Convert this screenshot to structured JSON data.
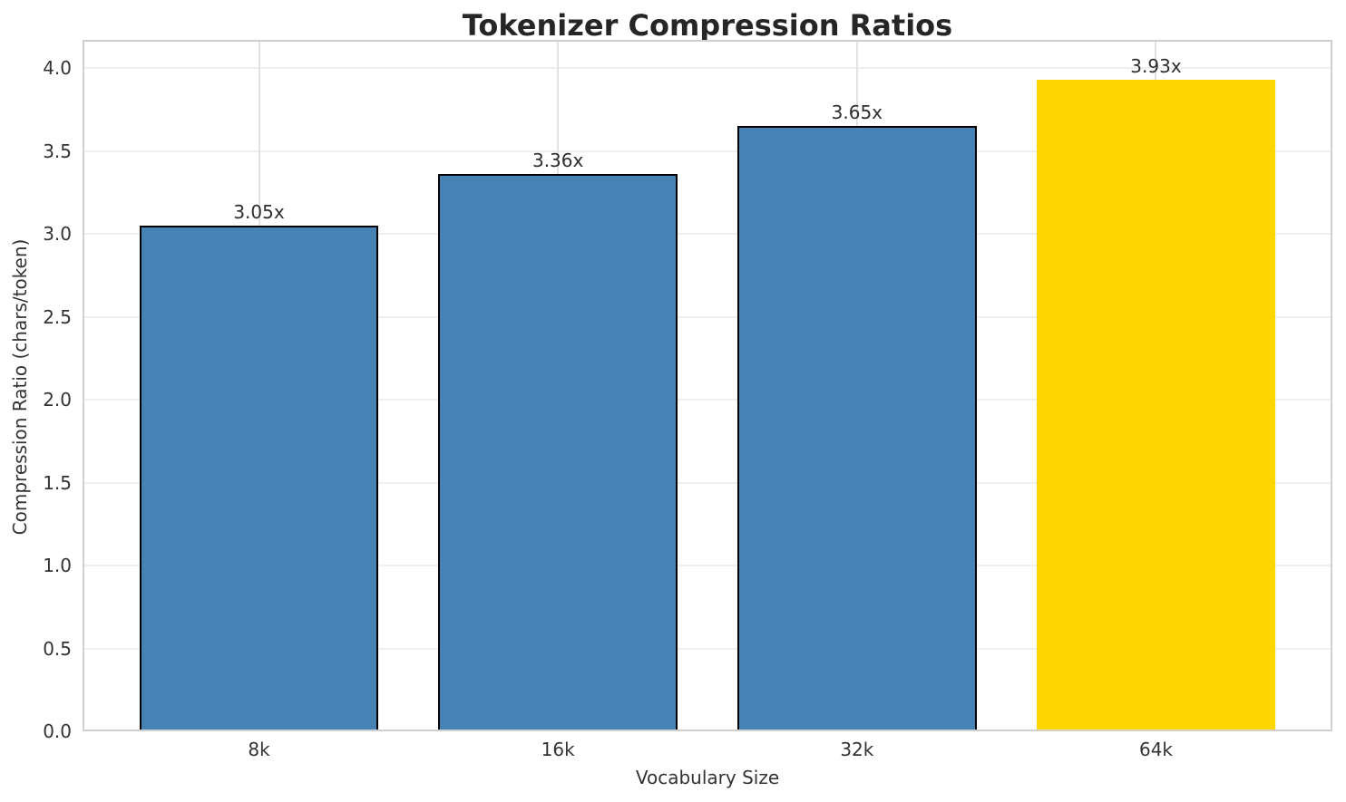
{
  "chart_data": {
    "type": "bar",
    "title": "Tokenizer Compression Ratios",
    "xlabel": "Vocabulary Size",
    "ylabel": "Compression Ratio (chars/token)",
    "categories": [
      "8k",
      "16k",
      "32k",
      "64k"
    ],
    "values": [
      3.05,
      3.36,
      3.65,
      3.93
    ],
    "bar_labels": [
      "3.05x",
      "3.36x",
      "3.65x",
      "3.93x"
    ],
    "bar_colors": [
      "#4682B4",
      "#4682B4",
      "#4682B4",
      "#FFD700"
    ],
    "bar_edge_colors": [
      "#000000",
      "#000000",
      "#000000",
      "none"
    ],
    "highlight_color": "#FFD700",
    "series_color": "#4682B4",
    "yticks": [
      0.0,
      0.5,
      1.0,
      1.5,
      2.0,
      2.5,
      3.0,
      3.5,
      4.0
    ],
    "ytick_labels": [
      "0.0",
      "0.5",
      "1.0",
      "1.5",
      "2.0",
      "2.5",
      "3.0",
      "3.5",
      "4.0"
    ],
    "ylim": [
      0,
      4.17
    ],
    "grid": true,
    "legend": "none"
  }
}
